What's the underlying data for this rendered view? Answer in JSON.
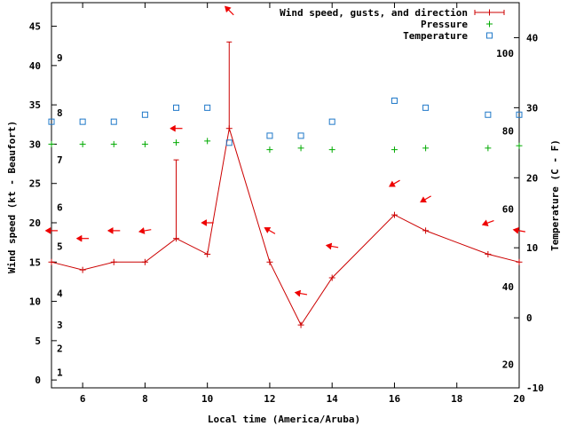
{
  "chart_data": {
    "type": "line",
    "title": "",
    "xlabel": "Local time (America/Aruba)",
    "ylabel": "Wind speed (kt - Beaufort)",
    "y2label": "Temperature (C - F)",
    "xlim": [
      5,
      20
    ],
    "ylim": [
      -1,
      48
    ],
    "y2lim": [
      -10,
      45
    ],
    "x_ticks": [
      6,
      8,
      10,
      12,
      14,
      16,
      18,
      20
    ],
    "y_ticks": [
      0,
      5,
      10,
      15,
      20,
      25,
      30,
      35,
      40,
      45
    ],
    "y2_ticks_celsius": [
      -10,
      0,
      10,
      20,
      30,
      40
    ],
    "y2_ticks_fahrenheit": [
      20,
      40,
      60,
      80,
      100
    ],
    "beaufort_levels": [
      {
        "label": "1",
        "y": 1
      },
      {
        "label": "2",
        "y": 4
      },
      {
        "label": "3",
        "y": 7
      },
      {
        "label": "4",
        "y": 11
      },
      {
        "label": "5",
        "y": 17
      },
      {
        "label": "6",
        "y": 22
      },
      {
        "label": "7",
        "y": 28
      },
      {
        "label": "8",
        "y": 34
      },
      {
        "label": "9",
        "y": 41
      }
    ],
    "legend": {
      "position": "top-right",
      "entries": [
        "Wind speed, gusts, and direction",
        "Pressure",
        "Temperature"
      ]
    },
    "colors": {
      "wind": "#cc0000",
      "pressure": "#00aa00",
      "temperature": "#1f78c8",
      "arrow": "#ee0000",
      "frame": "#000000"
    },
    "series": [
      {
        "name": "Wind speed, gusts, and direction",
        "x": [
          5,
          6,
          7,
          8,
          9,
          10,
          10.7,
          12,
          13,
          14,
          16,
          17,
          19,
          20
        ],
        "y": [
          15,
          14,
          15,
          15,
          18,
          16,
          32,
          15,
          7,
          13,
          21,
          19,
          16,
          15
        ],
        "gusts": [
          null,
          null,
          null,
          null,
          28,
          null,
          43,
          null,
          null,
          null,
          null,
          null,
          null,
          null
        ]
      },
      {
        "name": "Pressure",
        "x": [
          5,
          6,
          7,
          8,
          9,
          10,
          12,
          13,
          14,
          16,
          17,
          19,
          20
        ],
        "y": [
          30,
          30,
          30,
          30,
          30.2,
          30.4,
          29.3,
          29.5,
          29.3,
          29.3,
          29.5,
          29.5,
          29.8
        ]
      },
      {
        "name": "Temperature",
        "x": [
          5,
          6,
          7,
          8,
          9,
          10,
          10.7,
          12,
          13,
          14,
          16,
          17,
          19,
          20
        ],
        "y": [
          28,
          28,
          28,
          29,
          30,
          30,
          25,
          26,
          26,
          28,
          31,
          30,
          29,
          29
        ]
      }
    ],
    "wind_arrows": [
      {
        "x": 5,
        "y": 19,
        "dir": 90
      },
      {
        "x": 6,
        "y": 18,
        "dir": 90
      },
      {
        "x": 7,
        "y": 19,
        "dir": 90
      },
      {
        "x": 8,
        "y": 19,
        "dir": 80
      },
      {
        "x": 9,
        "y": 32,
        "dir": 90
      },
      {
        "x": 10,
        "y": 20,
        "dir": 90
      },
      {
        "x": 10.7,
        "y": 47,
        "dir": 135
      },
      {
        "x": 12,
        "y": 19,
        "dir": 120
      },
      {
        "x": 13,
        "y": 11,
        "dir": 100
      },
      {
        "x": 14,
        "y": 17,
        "dir": 100
      },
      {
        "x": 16,
        "y": 25,
        "dir": 60
      },
      {
        "x": 17,
        "y": 23,
        "dir": 60
      },
      {
        "x": 19,
        "y": 20,
        "dir": 70
      },
      {
        "x": 20,
        "y": 19,
        "dir": 100
      }
    ]
  }
}
